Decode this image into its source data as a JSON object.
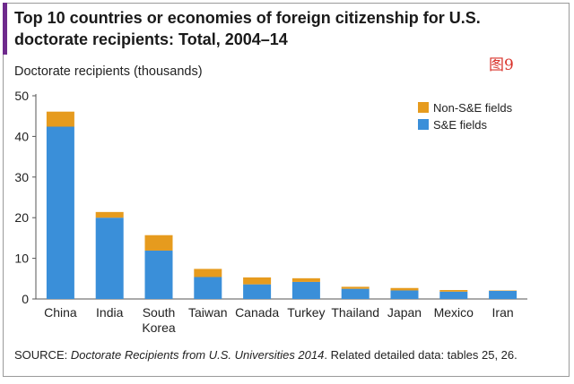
{
  "title": "Top 10 countries or economies of foreign citizenship for U.S. doctorate recipients: Total, 2004–14",
  "tag": "图9",
  "chart_data": {
    "type": "bar",
    "stacked": true,
    "title": "Top 10 countries or economies of foreign citizenship for U.S. doctorate recipients: Total, 2004–14",
    "ylabel": "Doctorate recipients (thousands)",
    "xlabel": "",
    "ylim": [
      0,
      50
    ],
    "yticks": [
      0,
      10,
      20,
      30,
      40,
      50
    ],
    "grid": false,
    "legend_position": "top-right",
    "categories": [
      "China",
      "India",
      "South Korea",
      "Taiwan",
      "Canada",
      "Turkey",
      "Thailand",
      "Japan",
      "Mexico",
      "Iran"
    ],
    "series": [
      {
        "name": "S&E fields",
        "color": "#3a8fd9",
        "values": [
          42.4,
          20.0,
          11.9,
          5.4,
          3.6,
          4.2,
          2.5,
          2.1,
          1.8,
          2.0
        ]
      },
      {
        "name": "Non-S&E fields",
        "color": "#e69b1e",
        "values": [
          3.7,
          1.4,
          3.8,
          2.0,
          1.7,
          0.9,
          0.5,
          0.6,
          0.4,
          0.1
        ]
      }
    ],
    "legend_order": [
      "Non-S&E fields",
      "S&E fields"
    ]
  },
  "source": {
    "prefix": "SOURCE: ",
    "italic": "Doctorate Recipients from U.S. Universities 2014",
    "suffix": ". Related detailed data: tables 25, 26."
  }
}
